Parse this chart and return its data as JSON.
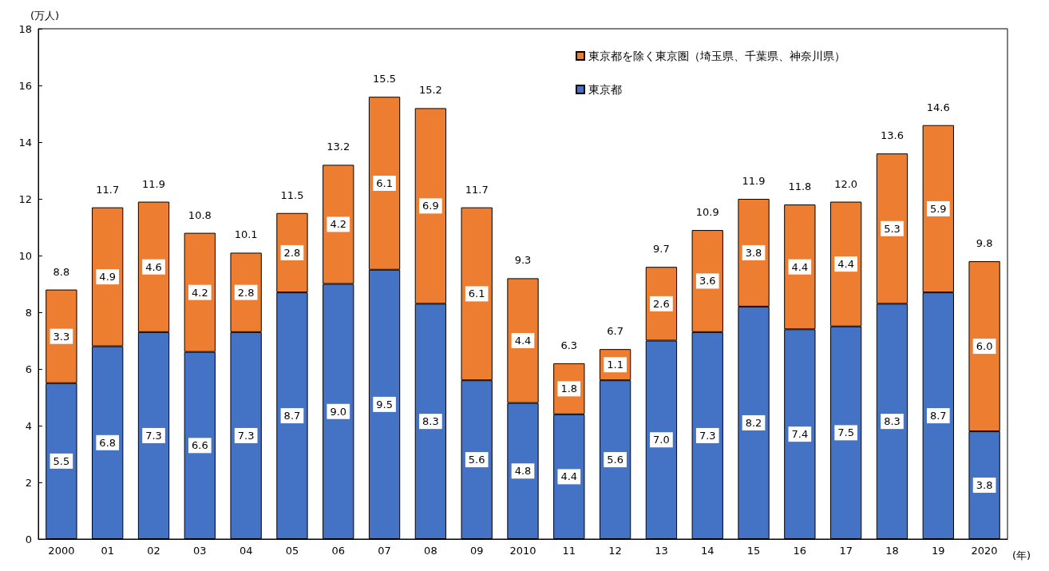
{
  "chart_data": {
    "type": "bar",
    "stacked": true,
    "ylabel": "(万人)",
    "xlabel": "(年)",
    "categories": [
      "2000",
      "01",
      "02",
      "03",
      "04",
      "05",
      "06",
      "07",
      "08",
      "09",
      "2010",
      "11",
      "12",
      "13",
      "14",
      "15",
      "16",
      "17",
      "18",
      "19",
      "2020"
    ],
    "ylim": [
      0,
      18
    ],
    "yticks": [
      0,
      2,
      4,
      6,
      8,
      10,
      12,
      14,
      16,
      18
    ],
    "grid": false,
    "legend": "top right",
    "series": [
      {
        "name": "東京都",
        "color": "#4472c4",
        "values": [
          5.5,
          6.8,
          7.3,
          6.6,
          7.3,
          8.7,
          9.0,
          9.5,
          8.3,
          5.6,
          4.8,
          4.4,
          5.6,
          7.0,
          7.3,
          8.2,
          7.4,
          7.5,
          8.3,
          8.7,
          3.8
        ],
        "value_labels": [
          "5.5",
          "6.8",
          "7.3",
          "6.6",
          "7.3",
          "8.7",
          "9.0",
          "9.5",
          "8.3",
          "5.6",
          "4.8",
          "4.4",
          "5.6",
          "7.0",
          "7.3",
          "8.2",
          "7.4",
          "7.5",
          "8.3",
          "8.7",
          "3.8"
        ]
      },
      {
        "name": "東京都を除く東京圏（埼玉県、千葉県、神奈川県）",
        "color": "#ed7d31",
        "values": [
          3.3,
          4.9,
          4.6,
          4.2,
          2.8,
          2.8,
          4.2,
          6.1,
          6.9,
          6.1,
          4.4,
          1.8,
          1.1,
          2.6,
          3.6,
          3.8,
          4.4,
          4.4,
          5.3,
          5.9,
          6.0
        ],
        "value_labels": [
          "3.3",
          "4.9",
          "4.6",
          "4.2",
          "2.8",
          "2.8",
          "4.2",
          "6.1",
          "6.9",
          "6.1",
          "4.4",
          "1.8",
          "1.1",
          "2.6",
          "3.6",
          "3.8",
          "4.4",
          "4.4",
          "5.3",
          "5.9",
          "6.0"
        ]
      }
    ],
    "totals": [
      "8.8",
      "11.7",
      "11.9",
      "10.8",
      "10.1",
      "11.5",
      "13.2",
      "15.5",
      "15.2",
      "11.7",
      "9.3",
      "6.3",
      "6.7",
      "9.7",
      "10.9",
      "11.9",
      "11.8",
      "12.0",
      "13.6",
      "14.6",
      "9.8"
    ]
  }
}
